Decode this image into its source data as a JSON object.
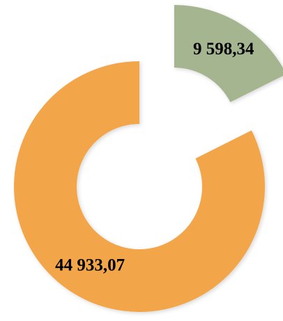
{
  "chart_data": {
    "type": "pie",
    "donut": true,
    "values": [
      9598.34,
      44933.07
    ],
    "value_labels": [
      "9 598,34",
      "44 933,07"
    ],
    "colors": [
      "#a5b58f",
      "#f2a54a"
    ],
    "explode": [
      true,
      false
    ]
  }
}
